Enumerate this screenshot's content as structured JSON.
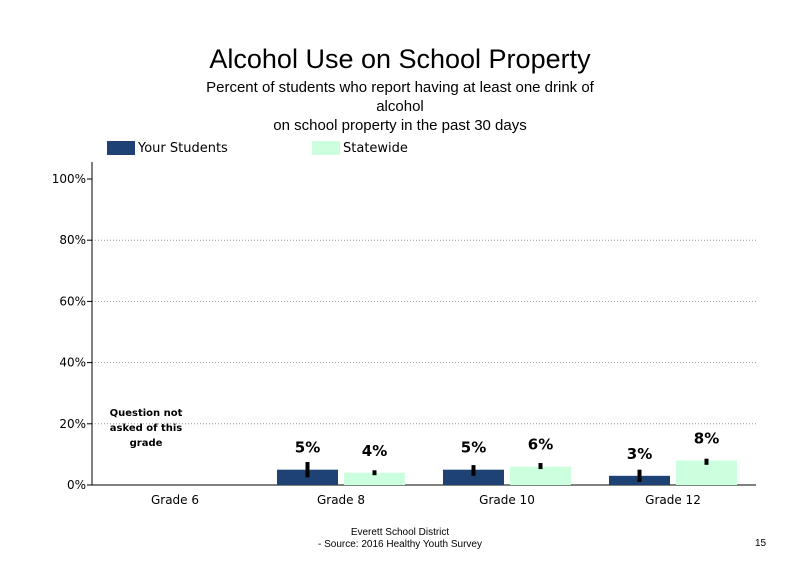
{
  "title": "Alcohol Use on School Property",
  "subtitle_lines": [
    "Percent of students who report having at least one drink of",
    "alcohol",
    "on school property in the past 30 days"
  ],
  "note": "Question not asked of this grade",
  "footer": {
    "line1": "Everett School District",
    "line2": "- Source: 2016 Healthy Youth Survey"
  },
  "page_number": "15",
  "colors": {
    "your_students": "#1f4275",
    "statewide": "#ccffdd",
    "error_bar": "#000000",
    "gridline": "#999999"
  },
  "chart_data": {
    "type": "bar",
    "title": "Alcohol Use on School Property",
    "categories": [
      "Grade 6",
      "Grade 8",
      "Grade 10",
      "Grade 12"
    ],
    "ylim": [
      0,
      100
    ],
    "yticks": [
      0,
      20,
      40,
      60,
      80,
      100
    ],
    "ytick_labels": [
      "0%",
      "20%",
      "40%",
      "60%",
      "80%",
      "100%"
    ],
    "grid": true,
    "legend_position": "top-left",
    "series": [
      {
        "name": "Your Students",
        "values": [
          null,
          5,
          5,
          3
        ],
        "labels": [
          "",
          "5%",
          "5%",
          "3%"
        ],
        "err_low": [
          null,
          2.5,
          3.0,
          1.0
        ],
        "err_high": [
          null,
          7.5,
          6.5,
          5.0
        ]
      },
      {
        "name": "Statewide",
        "values": [
          null,
          4,
          6,
          8
        ],
        "labels": [
          "",
          "4%",
          "6%",
          "8%"
        ],
        "err_low": [
          null,
          3.2,
          5.2,
          6.6
        ],
        "err_high": [
          null,
          4.8,
          7.2,
          8.6
        ]
      }
    ]
  }
}
